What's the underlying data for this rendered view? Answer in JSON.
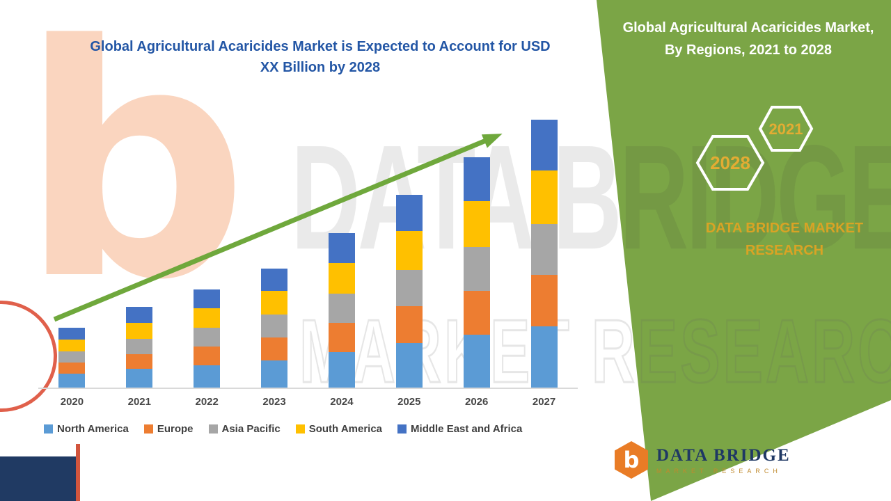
{
  "left": {
    "title": "Global Agricultural Acaricides Market is Expected to Account for USD XX Billion by 2028"
  },
  "right": {
    "title": "Global Agricultural Acaricides Market, By Regions, 2021 to 2028",
    "hexagons": [
      "2028",
      "2021"
    ],
    "brand": "DATA BRIDGE MARKET RESEARCH"
  },
  "watermark": {
    "b": "b",
    "line1": "DATA BRIDGE",
    "line2": "MARKET RESEARCH"
  },
  "footer_logo": {
    "b": "b",
    "name": "DATA BRIDGE",
    "tagline": "MARKET RESEARCH"
  },
  "chart_data": {
    "type": "bar",
    "stacked": true,
    "title": "Global Agricultural Acaricides Market is Expected to Account for USD XX Billion by 2028",
    "xlabel": "",
    "ylabel": "",
    "categories": [
      "2020",
      "2021",
      "2022",
      "2023",
      "2024",
      "2025",
      "2026",
      "2027"
    ],
    "series": [
      {
        "name": "North America",
        "color": "#5B9BD5",
        "values": [
          5.1,
          6.9,
          8.4,
          10.2,
          13.2,
          16.6,
          19.8,
          23.0
        ]
      },
      {
        "name": "Europe",
        "color": "#ED7D31",
        "values": [
          4.2,
          5.7,
          7.0,
          8.5,
          10.9,
          13.7,
          16.3,
          19.0
        ]
      },
      {
        "name": "Asia Pacific",
        "color": "#A6A6A6",
        "values": [
          4.2,
          5.7,
          7.0,
          8.5,
          10.9,
          13.7,
          16.3,
          19.0
        ]
      },
      {
        "name": "South America",
        "color": "#FFC000",
        "values": [
          4.5,
          6.0,
          7.3,
          8.9,
          11.5,
          14.4,
          17.2,
          20.0
        ]
      },
      {
        "name": "Middle East and Africa",
        "color": "#4472C4",
        "values": [
          4.3,
          5.8,
          6.9,
          8.4,
          11.1,
          13.6,
          16.3,
          19.0
        ]
      }
    ],
    "ylim": [
      0,
      100
    ],
    "grid": false,
    "legend_position": "bottom",
    "trend_arrow": true,
    "accent_colors": {
      "band_green": "#7BA546",
      "arrow_green": "#6FA83C",
      "title_blue": "#2356A5",
      "gold": "#D9A325",
      "navy": "#1F3864",
      "logo_orange": "#E97C26"
    }
  }
}
